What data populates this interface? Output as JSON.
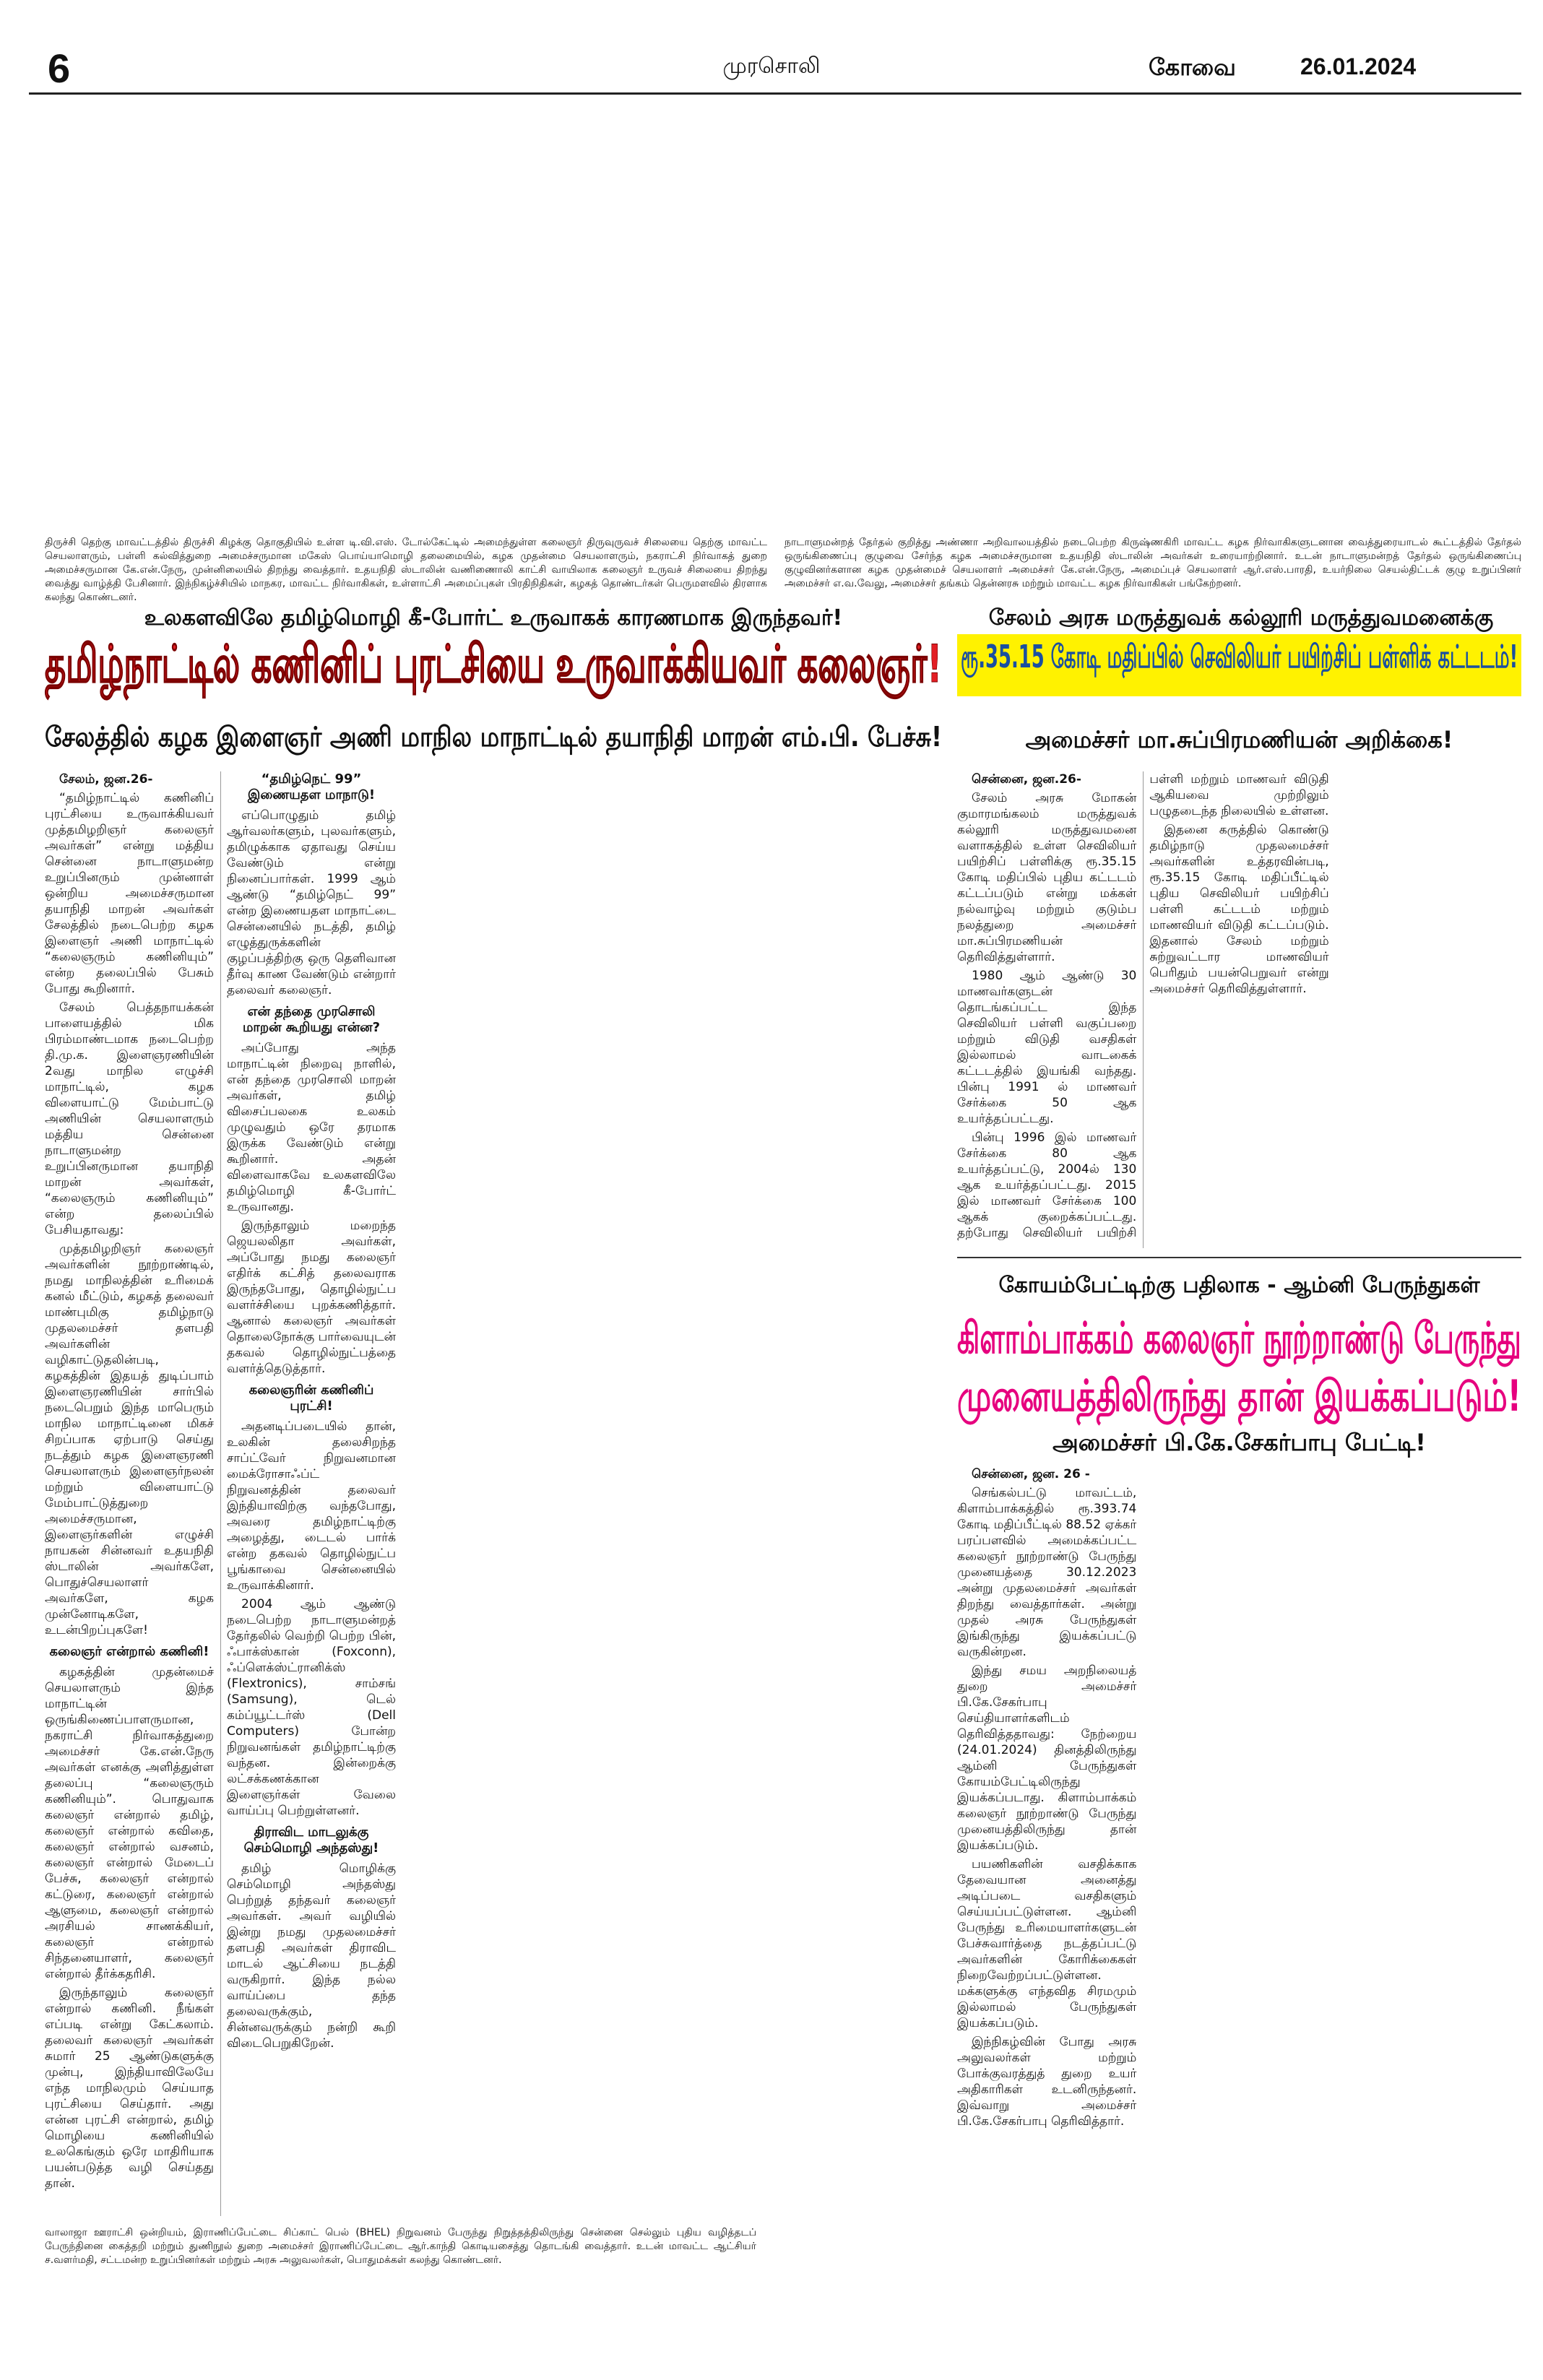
{
  "header": {
    "page_number": "6",
    "masthead": "முரசொலி",
    "edition": "கோவை",
    "date": "26.01.2024"
  },
  "captions": [
    "திருச்சி தெற்கு மாவட்டத்தில் திருச்சி கிழக்கு தொகுதியில் உள்ள டி.வி.எஸ். டோல்கேட்டில் அமைந்துள்ள கலைஞர் திருவுருவச் சிலையை தெற்கு மாவட்ட செயலாளரும், பள்ளி கல்வித்துறை அமைச்சருமான மகேஸ் பொய்யாமொழி தலைமையில், கழக முதன்மை செயலாளரும், நகராட்சி நிர்வாகத் துறை அமைச்சருமான கே.என்.நேரு, முன்னிலையில் திறந்து வைத்தார். உதயநிதி ஸ்டாலின் வணிணைாலி காட்சி வாயிலாக கலைஞர் உருவச் சிலையை திறந்து வைத்து வாழ்த்தி பேசினார். இந்நிகழ்ச்சியில் மாநகர, மாவட்ட நிர்வாகிகள், உள்ளாட்சி அமைப்புகள் பிரதிநிதிகள், கழகத் தொண்டர்கள் பெருமளவில் திரளாக கலந்து கொண்டனர்.",
    "நாடாளுமன்றத் தேர்தல் குறித்து அண்ணா அறிவாலயத்தில் நடைபெற்ற கிருஷ்ணகிரி மாவட்ட கழக நிர்வாகிகளுடனான வைத்துரையாடல் கூட்டத்தில் தேர்தல் ஒருங்கிணைப்பு குழுவை சேர்ந்த கழக அமைச்சருமான உதயநிதி ஸ்டாலின் அவர்கள் உரையாற்றினார். உடன் நாடாளுமன்றத் தேர்தல் ஒருங்கிணைப்பு குழுவினர்களான கழக முதன்மைச் செயலாளர் அமைச்சர் கே.என்.நேரு, அமைப்புச் செயலாளர் ஆர்.எஸ்.பாரதி, உயர்நிலை செயல்திட்டக் குழு உறுப்பினர் அமைச்சர் எ.வ.வேலு, அமைச்சர் தங்கம் தென்னரசு மற்றும் மாவட்ட கழக நிர்வாகிகள் பங்கேற்றனர்.",
    "வாலாஜா ஊராட்சி ஒன்றியம், இராணிப்பேட்டை சிப்காட் பெல் (BHEL) நிறுவனம் பேருந்து நிறுத்தத்திலிருந்து சென்னை செல்லும் புதிய வழித்தடப் பேருந்தினை கைத்தறி மற்றும் துணிநூல் துறை அமைச்சர் இராணிப்பேட்டை ஆர்.காந்தி கொடியசைத்து தொடங்கி வைத்தார். உடன் மாவட்ட ஆட்சியர் ச.வளர்மதி, சட்டமன்ற உறுப்பினர்கள் மற்றும் அரசு அலுவலர்கள், பொதுமக்கள் கலந்து கொண்டனர்."
  ],
  "articles": [
    {
      "kicker": "உலகளவிலே தமிழ்மொழி கீ-போர்ட் உருவாகக் காரணமாக இருந்தவர்!",
      "headline": "தமிழ்நாட்டில் கணினிப் புரட்சியை உருவாக்கியவர் கலைஞர்!",
      "subhead": "சேலத்தில் கழக இளைஞர் அணி மாநில மாநாட்டில் தயாநிதி மாறன் எம்.பி. பேச்சு!",
      "dateline": "சேலம், ஜன.26-",
      "body": [
        "“தமிழ்நாட்டில் கணினிப் புரட்சியை உருவாக்கியவர் முத்தமிழறிஞர் கலைஞர் அவர்கள்” என்று மத்திய சென்னை நாடாளுமன்ற உறுப்பினரும் முன்னாள் ஒன்றிய அமைச்சருமான தயாநிதி மாறன் அவர்கள் சேலத்தில் நடைபெற்ற கழக இளைஞர் அணி மாநாட்டில் “கலைஞரும் கணினியும்” என்ற தலைப்பில் பேசும் போது கூறினார்.",
        "சேலம் பெத்தநாயக்கன் பாளையத்தில் மிக பிரம்மாண்டமாக நடைபெற்ற தி.மு.க. இளைஞரணியின் 2வது மாநில எழுச்சி மாநாட்டில், கழக விளையாட்டு மேம்பாட்டு அணியின் செயலாளரும் மத்திய சென்னை நாடாளுமன்ற உறுப்பினருமான தயாநிதி மாறன் அவர்கள், “கலைஞரும் கணினியும்” என்ற தலைப்பில் பேசியதாவது:",
        "முத்தமிழறிஞர் கலைஞர் அவர்களின் நூற்றாண்டில், நமது மாநிலத்தின் உரிமைக் கனல் மீட்டும், கழகத் தலைவர் மாண்புமிகு தமிழ்நாடு முதலமைச்சர் தளபதி அவர்களின் வழிகாட்டுதலின்படி, கழகத்தின் இதயத் துடிப்பாம் இளைஞரணியின் சார்பில் நடைபெறும் இந்த மாபெரும் மாநில மாநாட்டினை மிகச் சிறப்பாக ஏற்பாடு செய்து நடத்தும் கழக இளைஞரணி செயலாளரும் இளைஞர்நலன் மற்றும் விளையாட்டு மேம்பாட்டுத்துறை அமைச்சருமான, இளைஞர்களின் எழுச்சி நாயகன் சின்னவர் உதயநிதி ஸ்டாலின் அவர்களே, பொதுச்செயலாளர் அவர்களே, கழக முன்னோடிகளே, உடன்பிறப்புகளே!",
        {
          "subheading": "கலைஞர் என்றால் கணினி!"
        },
        "கழகத்தின் முதன்மைச் செயலாளரும் இந்த மாநாட்டின் ஒருங்கிணைப்பாளருமான, நகராட்சி நிர்வாகத்துறை அமைச்சர் கே.என்.நேரு அவர்கள் எனக்கு அளித்துள்ள தலைப்பு “கலைஞரும் கணினியும்”. பொதுவாக கலைஞர் என்றால் தமிழ், கலைஞர் என்றால் கவிதை, கலைஞர் என்றால் வசனம், கலைஞர் என்றால் மேடைப் பேச்சு, கலைஞர் என்றால் கட்டுரை, கலைஞர் என்றால் ஆளுமை, கலைஞர் என்றால் அரசியல் சாணக்கியர், கலைஞர் என்றால் சிந்தனையாளர், கலைஞர் என்றால் தீர்க்கதரிசி.",
        "இருந்தாலும் கலைஞர் என்றால் கணினி. நீங்கள் எப்படி என்று கேட்கலாம். தலைவர் கலைஞர் அவர்கள் சுமார் 25 ஆண்டுகளுக்கு முன்பு, இந்தியாவிலேயே எந்த மாநிலமும் செய்யாத புரட்சியை செய்தார். அது என்ன புரட்சி என்றால், தமிழ் மொழியை கணினியில் உலகெங்கும் ஒரே மாதிரியாக பயன்படுத்த வழி செய்தது தான்.",
        {
          "subheading": "“தமிழ்நெட் 99” இணையதள மாநாடு!"
        },
        "எப்பொழுதும் தமிழ் ஆர்வலர்களும், புலவர்களும், தமிழுக்காக ஏதாவது செய்ய வேண்டும் என்று நினைப்பார்கள். 1999 ஆம் ஆண்டு “தமிழ்நெட் 99” என்ற இணையதள மாநாட்டை சென்னையில் நடத்தி, தமிழ் எழுத்துருக்களின் குழப்பத்திற்கு ஒரு தெளிவான தீர்வு காண வேண்டும் என்றார் தலைவர் கலைஞர்.",
        {
          "subheading": "என் தந்தை முரசொலி மாறன் கூறியது என்ன?"
        },
        "அப்போது அந்த மாநாட்டின் நிறைவு நாளில், என் தந்தை முரசொலி மாறன் அவர்கள், தமிழ் விசைப்பலகை உலகம் முழுவதும் ஒரே தரமாக இருக்க வேண்டும் என்று கூறினார். அதன் விளைவாகவே உலகளவிலே தமிழ்மொழி கீ-போர்ட் உருவானது.",
        "இருந்தாலும் மறைந்த ஜெயலலிதா அவர்கள், அப்போது நமது கலைஞர் எதிர்க் கட்சித் தலைவராக இருந்தபோது, தொழில்நுட்ப வளர்ச்சியை புறக்கணித்தார். ஆனால் கலைஞர் அவர்கள் தொலைநோக்கு பார்வையுடன் தகவல் தொழில்நுட்பத்தை வளர்த்தெடுத்தார்.",
        {
          "subheading": "கலைஞரின் கணினிப் புரட்சி!"
        },
        "அதனடிப்படையில் தான், உலகின் தலைசிறந்த சாப்ட்வேர் நிறுவனமான மைக்ரோசாஃப்ட் நிறுவனத்தின் தலைவர் இந்தியாவிற்கு வந்தபோது, அவரை தமிழ்நாட்டிற்கு அழைத்து, டைடல் பார்க் என்ற தகவல் தொழில்நுட்ப பூங்காவை சென்னையில் உருவாக்கினார்.",
        "2004 ஆம் ஆண்டு நடைபெற்ற நாடாளுமன்றத் தேர்தலில் வெற்றி பெற்ற பின், ஃபாக்ஸ்கான் (Foxconn), ஃப்ளெக்ஸ்ட்ரானிக்ஸ் (Flextronics), சாம்சங் (Samsung), டெல் கம்ப்யூட்டர்ஸ் (Dell Computers) போன்ற நிறுவனங்கள் தமிழ்நாட்டிற்கு வந்தன. இன்றைக்கு லட்சக்கணக்கான இளைஞர்கள் வேலை வாய்ப்பு பெற்றுள்ளனர்.",
        {
          "subheading": "திராவிட மாடலுக்கு செம்மொழி அந்தஸ்து!"
        },
        "தமிழ் மொழிக்கு செம்மொழி அந்தஸ்து பெற்றுத் தந்தவர் கலைஞர் அவர்கள். அவர் வழியில் இன்று நமது முதலமைச்சர் தளபதி அவர்கள் திராவிட மாடல் ஆட்சியை நடத்தி வருகிறார். இந்த நல்ல வாய்ப்பை தந்த தலைவருக்கும், சின்னவருக்கும் நன்றி கூறி விடைபெறுகிறேன்."
      ]
    },
    {
      "kicker": "சேலம் அரசு மருத்துவக் கல்லூரி மருத்துவமனைக்கு",
      "headline": "ரூ.35.15 கோடி மதிப்பில் செவிலியர் பயிற்சிப் பள்ளிக் கட்டடம்!",
      "subhead": "அமைச்சர் மா.சுப்பிரமணியன் அறிக்கை!",
      "dateline": "சென்னை, ஜன.26-",
      "body": [
        "சேலம் அரசு மோகன் குமாரமங்கலம் மருத்துவக் கல்லூரி மருத்துவமனை வளாகத்தில் உள்ள செவிலியர் பயிற்சிப் பள்ளிக்கு ரூ.35.15 கோடி மதிப்பில் புதிய கட்டடம் கட்டப்படும் என்று மக்கள் நல்வாழ்வு மற்றும் குடும்ப நலத்துறை அமைச்சர் மா.சுப்பிரமணியன் தெரிவித்துள்ளார்.",
        "1980 ஆம் ஆண்டு 30 மாணவர்களுடன் தொடங்கப்பட்ட இந்த செவிலியர் பள்ளி வகுப்பறை மற்றும் விடுதி வசதிகள் இல்லாமல் வாடகைக் கட்டடத்தில் இயங்கி வந்தது. பின்பு 1991 ல் மாணவர் சேர்க்கை 50 ஆக உயர்த்தப்பட்டது.",
        "பின்பு 1996 இல் மாணவர் சேர்க்கை 80 ஆக உயர்த்தப்பட்டு, 2004ல் 130 ஆக உயர்த்தப்பட்டது. 2015 இல் மாணவர் சேர்க்கை 100 ஆகக் குறைக்கப்பட்டது. தற்போது செவிலியர் பயிற்சி பள்ளி மற்றும் மாணவர் விடுதி ஆகியவை முற்றிலும் பழுதடைந்த நிலையில் உள்ளன.",
        "இதனை கருத்தில் கொண்டு தமிழ்நாடு முதலமைச்சர் அவர்களின் உத்தரவின்படி, ரூ.35.15 கோடி மதிப்பீட்டில் புதிய செவிலியர் பயிற்சிப் பள்ளி கட்டடம் மற்றும் மாணவியர் விடுதி கட்டப்படும். இதனால் சேலம் மற்றும் சுற்றுவட்டார மாணவியர் பெரிதும் பயன்பெறுவர் என்று அமைச்சர் தெரிவித்துள்ளார்."
      ]
    },
    {
      "kicker": "கோயம்பேட்டிற்கு பதிலாக - ஆம்னி பேருந்துகள்",
      "headline": "கிளாம்பாக்கம் கலைஞர் நூற்றாண்டு பேருந்து",
      "headline_line2": "முனையத்திலிருந்து தான் இயக்கப்படும்!",
      "subhead": "அமைச்சர் பி.கே.சேகர்பாபு பேட்டி!",
      "dateline": "சென்னை, ஜன. 26 -",
      "body": [
        "செங்கல்பட்டு மாவட்டம், கிளாம்பாக்கத்தில் ரூ.393.74 கோடி மதிப்பீட்டில் 88.52 ஏக்கர் பரப்பளவில் அமைக்கப்பட்ட கலைஞர் நூற்றாண்டு பேருந்து முனையத்தை 30.12.2023 அன்று முதலமைச்சர் அவர்கள் திறந்து வைத்தார்கள். அன்று முதல் அரசு பேருந்துகள் இங்கிருந்து இயக்கப்பட்டு வருகின்றன.",
        "இந்து சமய அறநிலையத் துறை அமைச்சர் பி.கே.சேகர்பாபு செய்தியாளர்களிடம் தெரிவித்ததாவது: நேற்றைய (24.01.2024) தினத்திலிருந்து ஆம்னி பேருந்துகள் கோயம்பேட்டிலிருந்து இயக்கப்படாது. கிளாம்பாக்கம் கலைஞர் நூற்றாண்டு பேருந்து முனையத்திலிருந்து தான் இயக்கப்படும்.",
        "பயணிகளின் வசதிக்காக தேவையான அனைத்து அடிப்படை வசதிகளும் செய்யப்பட்டுள்ளன. ஆம்னி பேருந்து உரிமையாளர்களுடன் பேச்சுவார்த்தை நடத்தப்பட்டு அவர்களின் கோரிக்கைகள் நிறைவேற்றப்பட்டுள்ளன. மக்களுக்கு எந்தவித சிரமமும் இல்லாமல் பேருந்துகள் இயக்கப்படும்.",
        "இந்நிகழ்வின் போது அரசு அலுவலர்கள் மற்றும் போக்குவரத்துத் துறை உயர் அதிகாரிகள் உடனிருந்தனர். இவ்வாறு அமைச்சர் பி.கே.சேகர்பாபு தெரிவித்தார்."
      ]
    }
  ]
}
